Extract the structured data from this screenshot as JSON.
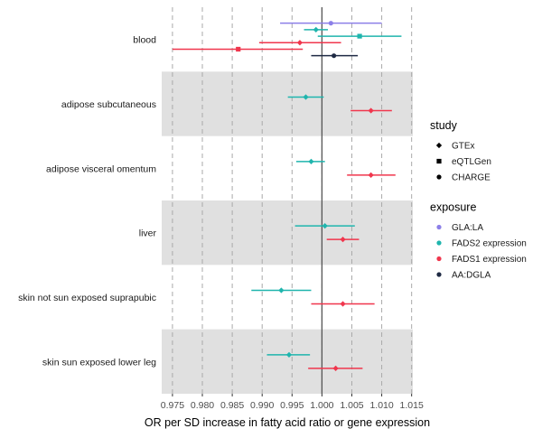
{
  "chart_data": {
    "type": "forest",
    "title": "",
    "xlabel": "OR per SD increase in fatty acid ratio or gene expression",
    "ylabel": "",
    "xlim": [
      0.9732,
      1.0152
    ],
    "xticks": [
      0.975,
      0.98,
      0.985,
      0.99,
      0.995,
      1.0,
      1.005,
      1.01,
      1.015
    ],
    "xtick_labels": [
      "0.975",
      "0.980",
      "0.985",
      "0.990",
      "0.995",
      "1.000",
      "1.005",
      "1.010",
      "1.015"
    ],
    "reference_line": 1.0,
    "grid": "dashed vertical",
    "shaded_rows": [
      "adipose subcutaneous",
      "liver",
      "skin sun exposed lower leg"
    ],
    "categories": [
      "blood",
      "adipose subcutaneous",
      "adipose visceral omentum",
      "liver",
      "skin not sun exposed suprapubic",
      "skin sun exposed lower leg"
    ],
    "legends": [
      {
        "title": "study",
        "placement": "right",
        "items": [
          {
            "label": "GTEx",
            "shape": "diamond"
          },
          {
            "label": "eQTLGen",
            "shape": "square"
          },
          {
            "label": "CHARGE",
            "shape": "circle"
          }
        ]
      },
      {
        "title": "exposure",
        "placement": "right",
        "items": [
          {
            "label": "GLA:LA",
            "color": "#8c7fe8"
          },
          {
            "label": "FADS2 expression",
            "color": "#1fb5ad"
          },
          {
            "label": "FADS1 expression",
            "color": "#f0364d"
          },
          {
            "label": "AA:DGLA",
            "color": "#1f2a44"
          }
        ]
      }
    ],
    "points": [
      {
        "category": "blood",
        "exposure": "GLA:LA",
        "study": "CHARGE",
        "or": 1.0015,
        "lo": 0.993,
        "hi": 1.01,
        "color": "#8c7fe8"
      },
      {
        "category": "blood",
        "exposure": "FADS2 expression",
        "study": "GTEx",
        "or": 0.999,
        "lo": 0.997,
        "hi": 1.001,
        "color": "#1fb5ad"
      },
      {
        "category": "blood",
        "exposure": "FADS2 expression",
        "study": "eQTLGen",
        "or": 1.0063,
        "lo": 0.9993,
        "hi": 1.0133,
        "color": "#1fb5ad"
      },
      {
        "category": "blood",
        "exposure": "FADS1 expression",
        "study": "GTEx",
        "or": 0.9963,
        "lo": 0.9895,
        "hi": 1.0032,
        "color": "#f0364d"
      },
      {
        "category": "blood",
        "exposure": "FADS1 expression",
        "study": "eQTLGen",
        "or": 0.986,
        "lo": 0.975,
        "hi": 0.9968,
        "color": "#f0364d"
      },
      {
        "category": "blood",
        "exposure": "AA:DGLA",
        "study": "CHARGE",
        "or": 1.002,
        "lo": 0.9982,
        "hi": 1.006,
        "color": "#1f2a44"
      },
      {
        "category": "adipose subcutaneous",
        "exposure": "FADS2 expression",
        "study": "GTEx",
        "or": 0.9973,
        "lo": 0.9943,
        "hi": 1.0003,
        "color": "#1fb5ad"
      },
      {
        "category": "adipose subcutaneous",
        "exposure": "FADS1 expression",
        "study": "GTEx",
        "or": 1.0082,
        "lo": 1.0048,
        "hi": 1.0117,
        "color": "#f0364d"
      },
      {
        "category": "adipose visceral omentum",
        "exposure": "FADS2 expression",
        "study": "GTEx",
        "or": 0.9982,
        "lo": 0.9957,
        "hi": 1.0005,
        "color": "#1fb5ad"
      },
      {
        "category": "adipose visceral omentum",
        "exposure": "FADS1 expression",
        "study": "GTEx",
        "or": 1.0082,
        "lo": 1.0042,
        "hi": 1.0123,
        "color": "#f0364d"
      },
      {
        "category": "liver",
        "exposure": "FADS2 expression",
        "study": "GTEx",
        "or": 1.0005,
        "lo": 0.9955,
        "hi": 1.0055,
        "color": "#1fb5ad"
      },
      {
        "category": "liver",
        "exposure": "FADS1 expression",
        "study": "GTEx",
        "or": 1.0035,
        "lo": 1.0008,
        "hi": 1.0062,
        "color": "#f0364d"
      },
      {
        "category": "skin not sun exposed suprapubic",
        "exposure": "FADS2 expression",
        "study": "GTEx",
        "or": 0.9932,
        "lo": 0.9882,
        "hi": 0.9982,
        "color": "#1fb5ad"
      },
      {
        "category": "skin not sun exposed suprapubic",
        "exposure": "FADS1 expression",
        "study": "GTEx",
        "or": 1.0035,
        "lo": 0.9982,
        "hi": 1.0088,
        "color": "#f0364d"
      },
      {
        "category": "skin sun exposed lower leg",
        "exposure": "FADS2 expression",
        "study": "GTEx",
        "or": 0.9945,
        "lo": 0.9908,
        "hi": 0.998,
        "color": "#1fb5ad"
      },
      {
        "category": "skin sun exposed lower leg",
        "exposure": "FADS1 expression",
        "study": "GTEx",
        "or": 1.0023,
        "lo": 0.9977,
        "hi": 1.0068,
        "color": "#f0364d"
      }
    ]
  }
}
